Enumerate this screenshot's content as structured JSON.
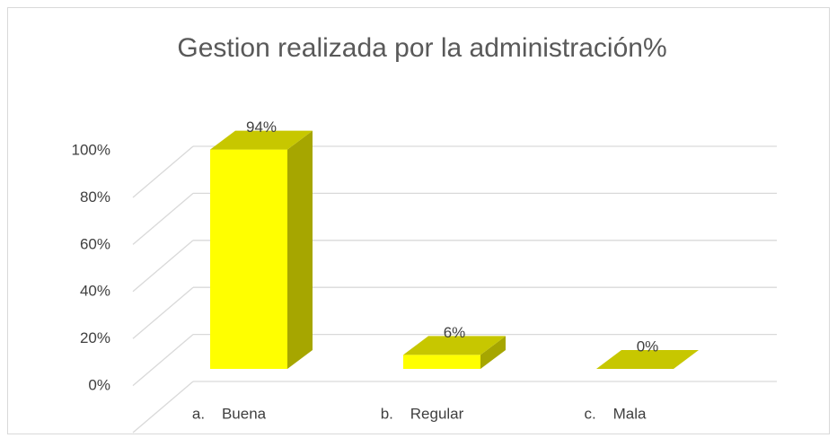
{
  "chart_data": {
    "type": "bar3d",
    "title": "Gestion realizada por la administración%",
    "categories": [
      "a.    Buena",
      "b.    Regular",
      "c.    Mala"
    ],
    "values": [
      94,
      6,
      0
    ],
    "value_labels": [
      "94%",
      "6%",
      "0%"
    ],
    "color": "#ffff00",
    "ylim": [
      0,
      100
    ],
    "yticks": [
      {
        "value": 0,
        "label": "0%"
      },
      {
        "value": 20,
        "label": "20%"
      },
      {
        "value": 40,
        "label": "40%"
      },
      {
        "value": 60,
        "label": "60%"
      },
      {
        "value": 80,
        "label": "80%"
      },
      {
        "value": 100,
        "label": "100%"
      }
    ],
    "grid": true
  }
}
